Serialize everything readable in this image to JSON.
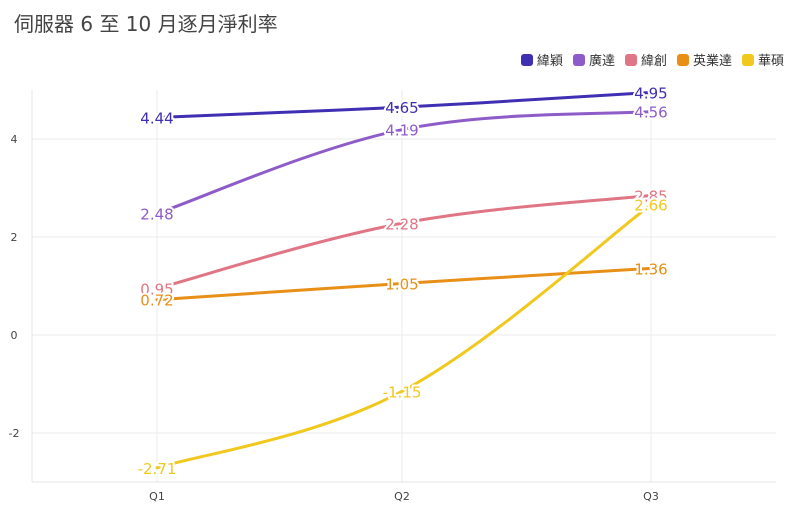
{
  "chart_data": {
    "type": "line",
    "title": "伺服器 6 至 10 月逐月淨利率",
    "categories": [
      "Q1",
      "Q2",
      "Q3"
    ],
    "ylim": [
      -3,
      5
    ],
    "yticks": [
      -2,
      0,
      2,
      4
    ],
    "grid": true,
    "legend_position": "top-right",
    "series": [
      {
        "name": "緯穎",
        "color": "#3f2fb3",
        "values": [
          4.44,
          4.65,
          4.95
        ],
        "labels": [
          "4.44",
          "4.65",
          "4.95"
        ]
      },
      {
        "name": "廣達",
        "color": "#8e5cc8",
        "values": [
          2.48,
          4.19,
          4.56
        ],
        "labels": [
          "2.48",
          "4.19",
          "4.56"
        ]
      },
      {
        "name": "緯創",
        "color": "#e07585",
        "values": [
          0.95,
          2.28,
          2.85
        ],
        "labels": [
          "0.95",
          "2.28",
          "2.85"
        ]
      },
      {
        "name": "英業達",
        "color": "#e88f18",
        "values": [
          0.72,
          1.05,
          1.36
        ],
        "labels": [
          "0.72",
          "1.05",
          "1.36"
        ]
      },
      {
        "name": "華碩",
        "color": "#f0c81e",
        "values": [
          -2.71,
          -1.15,
          2.66
        ],
        "labels": [
          "-2.71",
          "-1.15",
          "2.66"
        ]
      }
    ]
  }
}
